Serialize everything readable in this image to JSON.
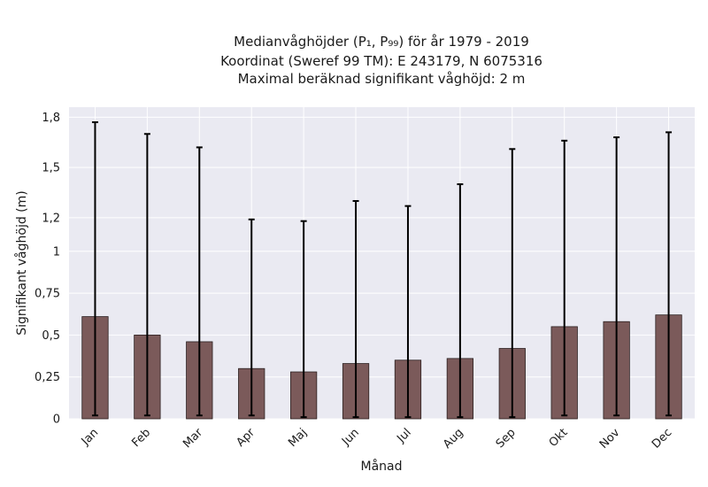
{
  "chart_data": {
    "type": "bar",
    "title_lines": [
      "Medianvåghöjder (P₁, P₉₉) för år 1979 - 2019",
      "Koordinat (Sweref 99 TM): E 243179, N 6075316",
      "Maximal beräknad signifikant våghöjd: 2 m"
    ],
    "xlabel": "Månad",
    "ylabel": "Signifikant våghöjd (m)",
    "categories": [
      "Jan",
      "Feb",
      "Mar",
      "Apr",
      "Maj",
      "Jun",
      "Jul",
      "Aug",
      "Sep",
      "Okt",
      "Nov",
      "Dec"
    ],
    "values": [
      0.61,
      0.5,
      0.46,
      0.3,
      0.28,
      0.33,
      0.35,
      0.36,
      0.42,
      0.55,
      0.58,
      0.62
    ],
    "error_low": [
      0.02,
      0.02,
      0.02,
      0.02,
      0.01,
      0.01,
      0.01,
      0.01,
      0.01,
      0.02,
      0.02,
      0.02
    ],
    "error_high": [
      1.77,
      1.7,
      1.62,
      1.19,
      1.18,
      1.3,
      1.27,
      1.4,
      1.61,
      1.66,
      1.68,
      1.71
    ],
    "ylim": [
      0,
      1.86
    ],
    "yticks": [
      0,
      0.25,
      0.5,
      0.75,
      1,
      1.2,
      1.5,
      1.8
    ],
    "ytick_labels": [
      "0",
      "0,25",
      "0,5",
      "0,75",
      "1",
      "1,2",
      "1,5",
      "1,8"
    ],
    "grid": true,
    "colors": {
      "bar": "#7b5a5a",
      "bar_edge": "#2b2020",
      "errorbar": "#000000",
      "plot_bg": "#eaeaf2",
      "grid": "#ffffff"
    }
  }
}
